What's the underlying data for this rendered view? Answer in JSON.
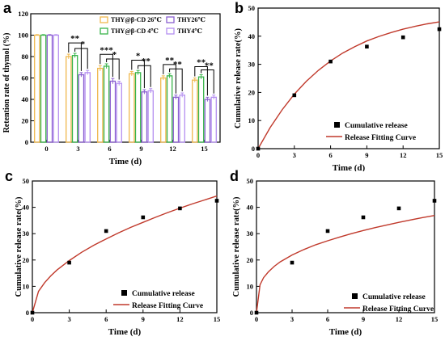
{
  "panels": {
    "a": "a",
    "b": "b",
    "c": "c",
    "d": "d"
  },
  "chart_data": [
    {
      "panel": "a",
      "type": "bar",
      "title": "",
      "xlabel": "Time (d)",
      "ylabel": "Retention rate of thymol (%)",
      "ylim": [
        0,
        120
      ],
      "yticks": [
        0,
        20,
        40,
        60,
        80,
        100,
        120
      ],
      "categories": [
        "0",
        "3",
        "6",
        "9",
        "12",
        "15"
      ],
      "legend_position": "top-right",
      "series": [
        {
          "name": "THY@β-CD 26℃",
          "color": "#f0b84d",
          "values": [
            100,
            80,
            69,
            64,
            60,
            58
          ],
          "errors": [
            0.5,
            2.2,
            2.5,
            2.0,
            2.0,
            2.0
          ]
        },
        {
          "name": "THY@β-CD 4℃",
          "color": "#38b44a",
          "values": [
            100,
            81,
            71,
            65,
            62,
            61
          ],
          "errors": [
            0.5,
            2.0,
            2.2,
            2.0,
            2.0,
            2.0
          ]
        },
        {
          "name": "THY26℃",
          "color": "#8a5fd0",
          "values": [
            100,
            63,
            57,
            47,
            42,
            40
          ],
          "errors": [
            0.5,
            2.0,
            2.5,
            2.0,
            2.0,
            2.0
          ]
        },
        {
          "name": "THY4℃",
          "color": "#b48ef0",
          "values": [
            100,
            65,
            55,
            48,
            44,
            42
          ],
          "errors": [
            0.5,
            2.0,
            2.0,
            2.0,
            2.0,
            2.0
          ]
        }
      ],
      "significance": [
        {
          "category": "3",
          "upper": "**",
          "lower": "*"
        },
        {
          "category": "6",
          "upper": "***",
          "lower": "*"
        },
        {
          "category": "9",
          "upper": "*",
          "lower": "**"
        },
        {
          "category": "12",
          "upper": "**",
          "lower": "**"
        },
        {
          "category": "15",
          "upper": "**",
          "lower": "**"
        }
      ]
    },
    {
      "panel": "b",
      "type": "scatter",
      "title": "",
      "xlabel": "Time (d)",
      "ylabel": "Cumulative release rate(%)",
      "xlim": [
        0,
        15
      ],
      "ylim": [
        0,
        50
      ],
      "xticks": [
        0,
        3,
        6,
        9,
        12,
        15
      ],
      "yticks": [
        0,
        10,
        20,
        30,
        40,
        50
      ],
      "legend_position": "bottom-right",
      "series": [
        {
          "name": "Cumulative release",
          "kind": "points",
          "color": "#000000",
          "x": [
            0,
            3,
            6,
            9,
            12,
            15
          ],
          "y": [
            0,
            19,
            31,
            36.3,
            39.6,
            42.5
          ]
        },
        {
          "name": "Release Fitting Curve",
          "kind": "line",
          "color": "#c0392b",
          "x": [
            0,
            1,
            2,
            3,
            4,
            5,
            6,
            7,
            8,
            9,
            10,
            11,
            12,
            13,
            14,
            15
          ],
          "y": [
            0,
            7.5,
            13.9,
            19.4,
            24.0,
            27.9,
            31.2,
            34.0,
            36.3,
            38.3,
            39.9,
            41.3,
            42.5,
            43.5,
            44.4,
            45.1
          ]
        }
      ]
    },
    {
      "panel": "c",
      "type": "scatter",
      "title": "",
      "xlabel": "Time (d)",
      "ylabel": "Cumulative release rate(%)",
      "xlim": [
        0,
        15
      ],
      "ylim": [
        0,
        50
      ],
      "xticks": [
        0,
        3,
        6,
        9,
        12,
        15
      ],
      "yticks": [
        0,
        10,
        20,
        30,
        40,
        50
      ],
      "legend_position": "bottom-center",
      "series": [
        {
          "name": "Cumulative release",
          "kind": "points",
          "color": "#000000",
          "x": [
            0,
            3,
            6,
            9,
            12,
            15
          ],
          "y": [
            0,
            19,
            31,
            36.2,
            39.6,
            42.5
          ]
        },
        {
          "name": "Release Fitting Curve",
          "kind": "line",
          "color": "#c0392b",
          "x": [
            0,
            0.5,
            1,
            1.5,
            2,
            3,
            4,
            5,
            6,
            7,
            8,
            9,
            10,
            11,
            12,
            13,
            14,
            15
          ],
          "y": [
            0,
            8.1,
            11.4,
            14.0,
            16.2,
            19.8,
            22.9,
            25.6,
            28.0,
            30.3,
            32.4,
            34.3,
            36.2,
            38.0,
            39.7,
            41.3,
            42.8,
            44.3
          ]
        }
      ]
    },
    {
      "panel": "d",
      "type": "scatter",
      "title": "",
      "xlabel": "Time (d)",
      "ylabel": "Cumulative release rate(%)",
      "xlim": [
        0,
        15
      ],
      "ylim": [
        0,
        50
      ],
      "xticks": [
        0,
        3,
        6,
        9,
        12,
        15
      ],
      "yticks": [
        0,
        10,
        20,
        30,
        40,
        50
      ],
      "legend_position": "bottom-right",
      "series": [
        {
          "name": "Cumulative release",
          "kind": "points",
          "color": "#000000",
          "x": [
            0,
            3,
            6,
            9,
            12,
            15
          ],
          "y": [
            0,
            19,
            31,
            36.2,
            39.6,
            42.5
          ]
        },
        {
          "name": "Release Fitting Curve",
          "kind": "line",
          "color": "#c0392b",
          "x": [
            0,
            0.3,
            0.6,
            1,
            1.5,
            2,
            3,
            4,
            5,
            6,
            7,
            8,
            9,
            10,
            11,
            12,
            13,
            14,
            15
          ],
          "y": [
            0,
            10.6,
            13.3,
            15.5,
            17.6,
            19.3,
            21.9,
            24.0,
            25.8,
            27.3,
            28.7,
            30.0,
            31.2,
            32.3,
            33.3,
            34.3,
            35.2,
            36.1,
            36.9
          ]
        }
      ]
    }
  ]
}
